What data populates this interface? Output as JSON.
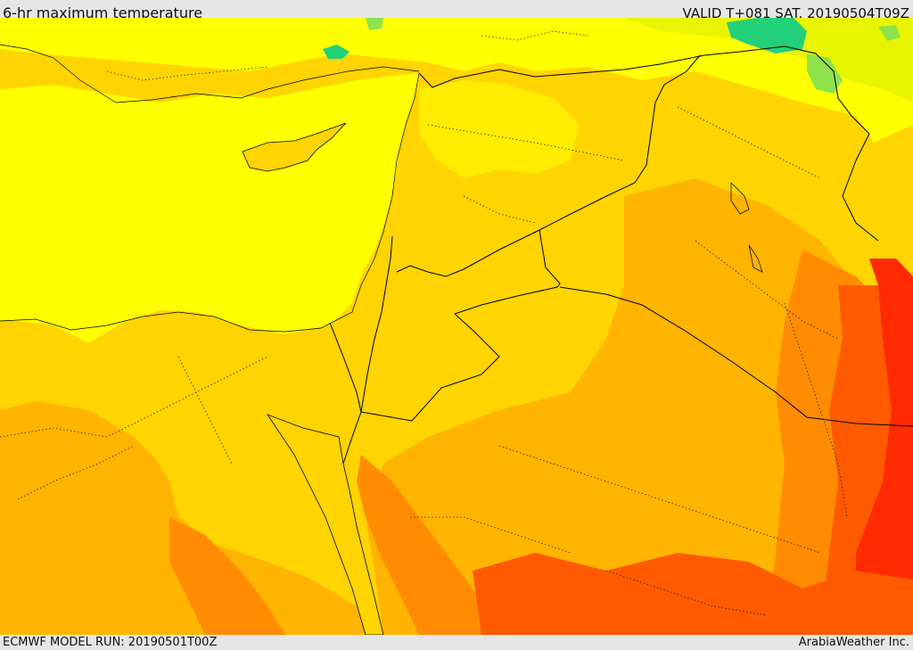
{
  "header": {
    "title": "6-hr maximum temperature",
    "valid_time": "VALID T+081 SAT. 20190504T09Z"
  },
  "footer": {
    "model_run": "ECMWF MODEL RUN: 20190501T00Z",
    "credit": "ArabiaWeather Inc."
  },
  "map": {
    "variable": "6-hr maximum temperature",
    "colors": {
      "green": "#22d07a",
      "light_green": "#8ee24a",
      "yellow_green": "#d6f000",
      "yellow": "#ffff00",
      "gold": "#ffd400",
      "orange_light": "#ffb400",
      "orange": "#ff8c00",
      "orange_red": "#ff5a00",
      "red": "#ff2a00"
    }
  }
}
